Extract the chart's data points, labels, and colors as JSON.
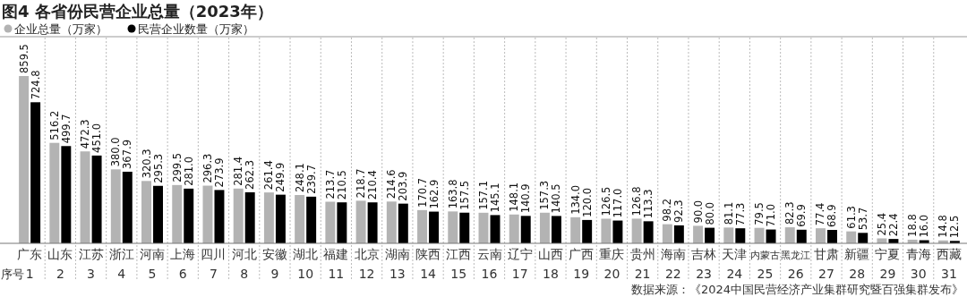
{
  "chart_data": {
    "type": "bar",
    "title": "图4 各省份民营企业总量（2023年）",
    "categories": [
      "广东\n1",
      "山东\n2",
      "江苏\n3",
      "浙江\n4",
      "河南\n5",
      "上海\n6",
      "四川\n7",
      "河北\n8",
      "安徽\n9",
      "湖北\n10",
      "福建\n11",
      "北京\n12",
      "湖南\n13",
      "陕西\n14",
      "江西\n15",
      "云南\n16",
      "辽宁\n17",
      "山西\n18",
      "广西\n19",
      "重庆\n20",
      "贵州\n21",
      "海南\n22",
      "吉林\n23",
      "天津\n24",
      "内蒙古\n25",
      "黑龙江\n26",
      "甘肃\n27",
      "新疆\n28",
      "宁夏\n29",
      "青海\n30",
      "西藏\n31"
    ],
    "series": [
      {
        "name": "企业总量（万家）",
        "color": "#b3b3b3",
        "values": [
          859.5,
          516.2,
          472.3,
          380.0,
          320.3,
          299.5,
          296.3,
          281.4,
          261.4,
          248.1,
          213.7,
          218.7,
          214.6,
          170.7,
          163.8,
          157.1,
          148.1,
          157.3,
          134.0,
          126.5,
          126.8,
          98.2,
          90.0,
          81.1,
          79.5,
          82.3,
          77.4,
          61.3,
          25.4,
          18.8,
          14.8
        ],
        "value_labels": [
          "859.5",
          "516.2",
          "472.3",
          "380.0",
          "320.3",
          "299.5",
          "296.3",
          "281.4",
          "261.4",
          "248.1",
          "213.7",
          "218.7",
          "214.6",
          "170.7",
          "163.8",
          "157.1",
          "148.1",
          "157.3",
          "134.0",
          "126.5",
          "126.8",
          "98.2",
          "90.0",
          "81.1",
          "79.5",
          "82.3",
          "77.4",
          "61.3",
          "25.4",
          "18.8",
          "14.8"
        ]
      },
      {
        "name": "民营企业数量（万家）",
        "color": "#000000",
        "values": [
          724.8,
          499.7,
          451.0,
          367.9,
          295.3,
          281.0,
          273.9,
          262.3,
          249.9,
          239.7,
          210.5,
          210.4,
          203.9,
          162.9,
          157.5,
          145.1,
          140.9,
          140.5,
          120.0,
          117.0,
          113.3,
          92.3,
          80.0,
          77.3,
          71.0,
          69.9,
          68.9,
          53.7,
          22.4,
          16.0,
          12.5
        ],
        "value_labels": [
          "724.8",
          "499.7",
          "451.0",
          "367.9",
          "295.3",
          "281.0",
          "273.9",
          "262.3",
          "249.9",
          "239.7",
          "210.5",
          "210.4",
          "203.9",
          "162.9",
          "157.5",
          "145.1",
          "140.9",
          "140.5",
          "120.0",
          "117.0",
          "113.3",
          "92.3",
          "80.0",
          "77.3",
          "71.0",
          "69.9",
          "68.9",
          "53.7",
          "22.4",
          "16.0",
          "12.5"
        ]
      }
    ],
    "grid": "x",
    "legend": "top left",
    "annotations": [
      "数据来源：《2024中国民营经济产业集群研究暨百强集群发布》",
      "序号"
    ]
  }
}
